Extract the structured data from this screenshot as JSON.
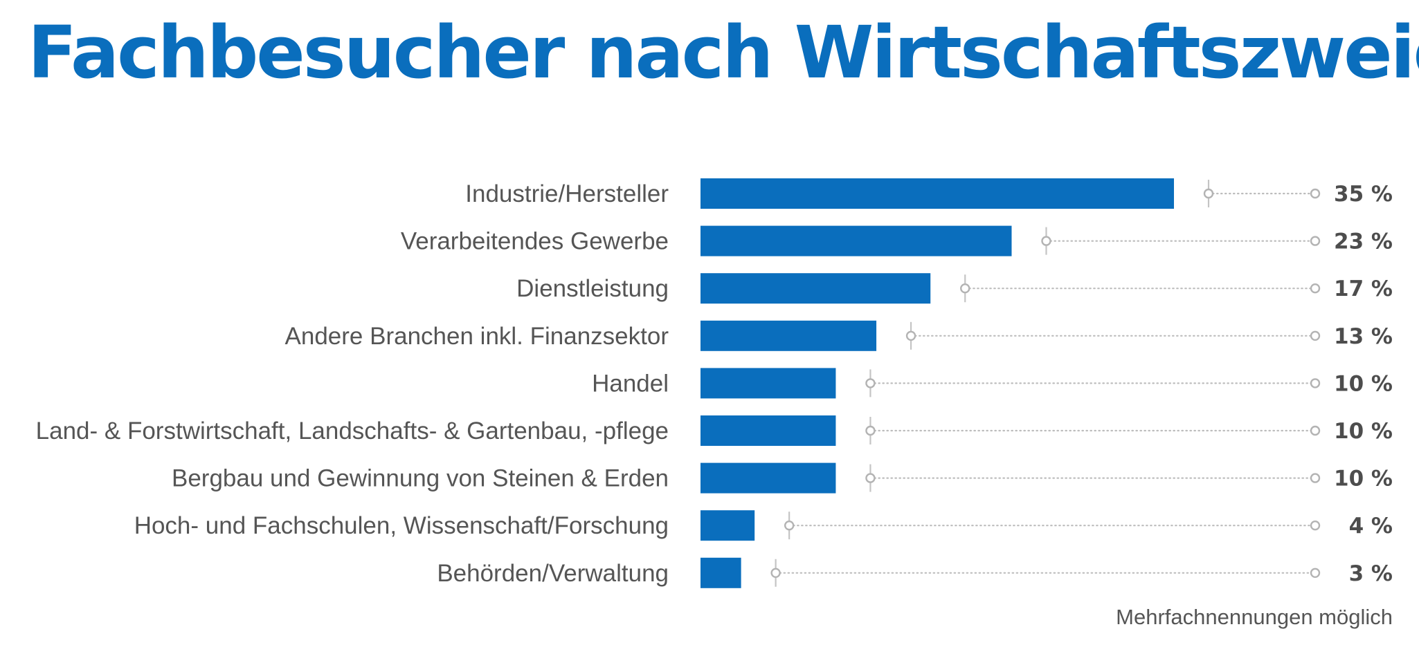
{
  "colors": {
    "accent": "#0a6ebd",
    "bar": "#0a6ebd",
    "label_text": "#555555",
    "value_text": "#4d4d4d",
    "dotted_line": "#bdbdbd"
  },
  "chart_data": {
    "type": "bar",
    "orientation": "horizontal",
    "title": "Fachbesucher nach Wirtschaftszweig",
    "categories": [
      "Industrie/Hersteller",
      "Verarbeitendes Gewerbe",
      "Dienstleistung",
      "Andere Branchen inkl. Finanzsektor",
      "Handel",
      "Land- & Forstwirtschaft, Landschafts- & Gartenbau, -pflege",
      "Bergbau und Gewinnung von Steinen & Erden",
      "Hoch- und Fachschulen, Wissenschaft/Forschung",
      "Behörden/Verwaltung"
    ],
    "values": [
      35,
      23,
      17,
      13,
      10,
      10,
      10,
      4,
      3
    ],
    "value_labels": [
      "35 %",
      "23 %",
      "17 %",
      "13 %",
      "10 %",
      "10 %",
      "10 %",
      "4 %",
      "3 %"
    ],
    "unit": "%",
    "xlim": [
      0,
      35
    ],
    "grid": false,
    "legend": "none",
    "footnote": "Mehrfachnennungen möglich"
  }
}
